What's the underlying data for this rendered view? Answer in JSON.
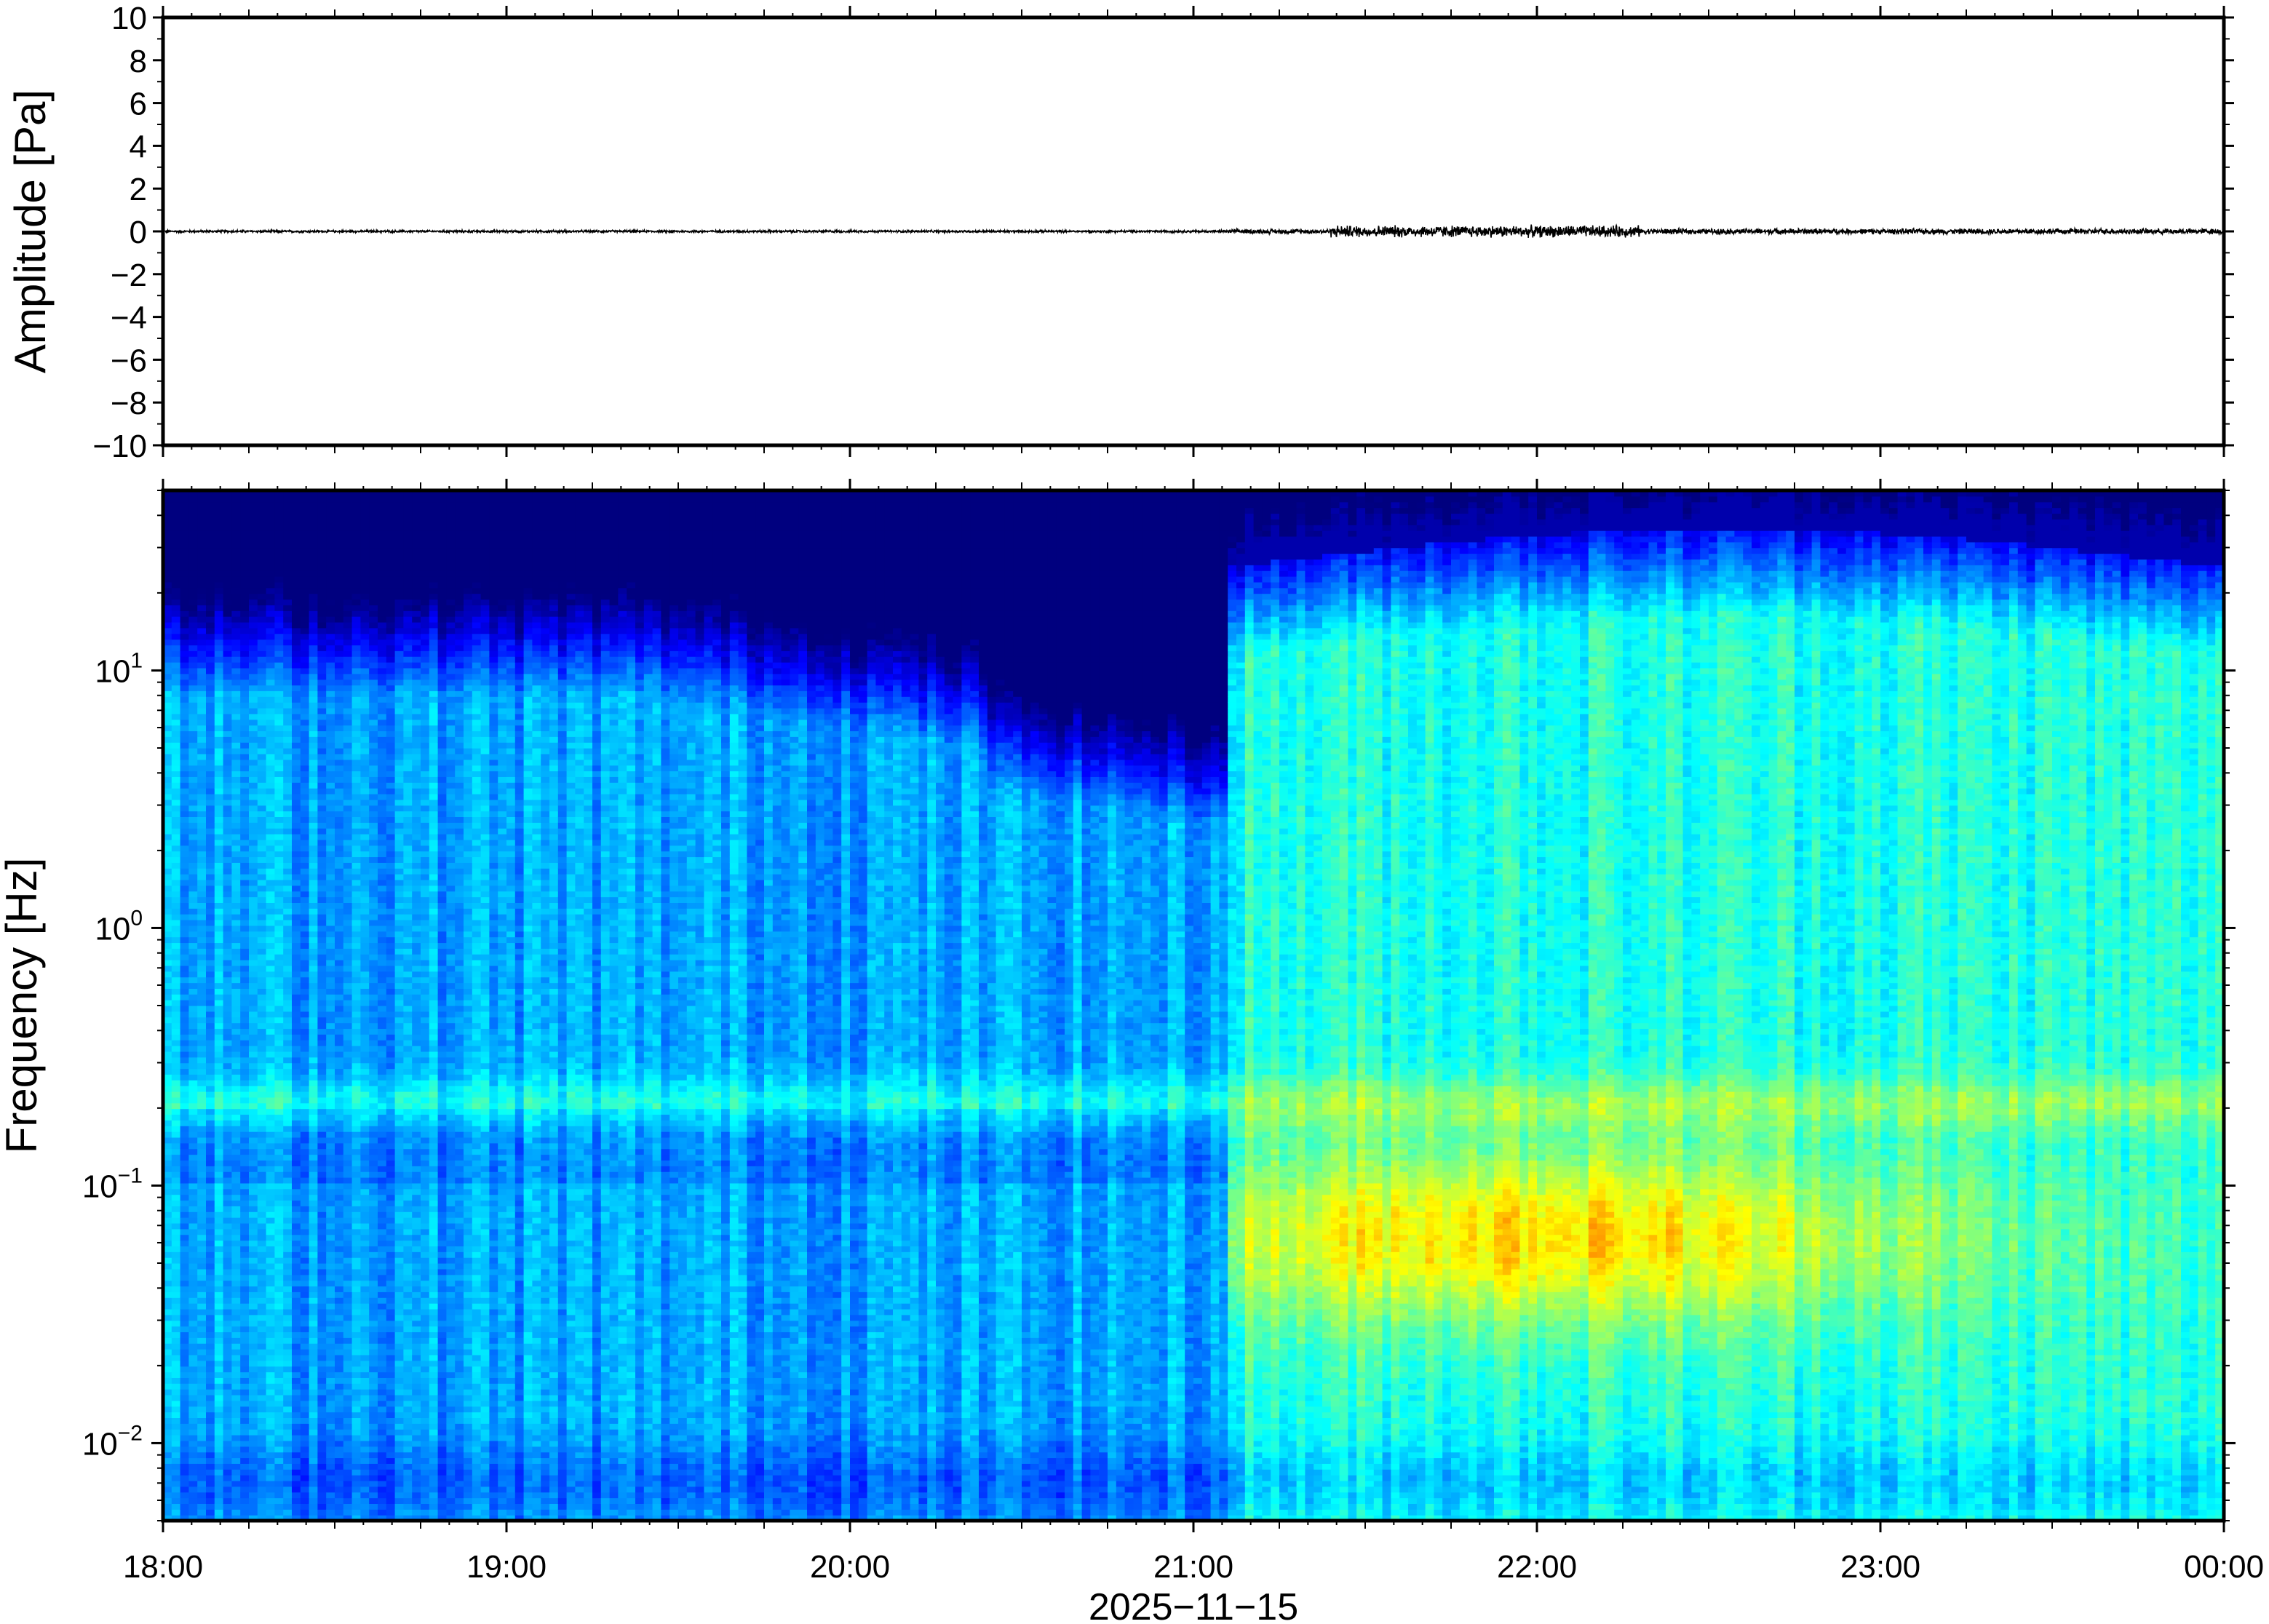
{
  "chart_data": [
    {
      "type": "line",
      "panel": "waveform",
      "ylabel": "Amplitude [Pa]",
      "ylim": [
        -10,
        10
      ],
      "yticks": [
        10,
        8,
        6,
        4,
        2,
        0,
        -2,
        -4,
        -6,
        -8,
        -10
      ],
      "ytick_labels": [
        "10",
        "8",
        "6",
        "4",
        "2",
        "0",
        "−2",
        "−4",
        "−6",
        "−8",
        "−10"
      ],
      "xlim_hours": [
        18,
        24
      ],
      "series": [
        {
          "segments": [
            {
              "t_start": 18.0,
              "t_end": 21.1,
              "envelope_pa": 0.05
            },
            {
              "t_start": 21.1,
              "t_end": 21.4,
              "envelope_pa": 0.1
            },
            {
              "t_start": 21.4,
              "t_end": 22.3,
              "envelope_pa": 0.25
            },
            {
              "t_start": 22.3,
              "t_end": 24.0,
              "envelope_pa": 0.12
            }
          ]
        }
      ],
      "grid": false
    },
    {
      "type": "heatmap",
      "panel": "spectrogram",
      "ylabel": "Frequency [Hz]",
      "yscale": "log",
      "ylim_hz": [
        0.005,
        50
      ],
      "ytick_labels": [
        {
          "value": 10,
          "base": "10",
          "exp": "1"
        },
        {
          "value": 1,
          "base": "10",
          "exp": "0"
        },
        {
          "value": 0.1,
          "base": "10",
          "exp": "−1"
        },
        {
          "value": 0.01,
          "base": "10",
          "exp": "−2"
        }
      ],
      "xlabel": "2025−11−15",
      "xticks_hours": [
        18,
        19,
        20,
        21,
        22,
        23,
        24
      ],
      "xtick_labels": [
        "18:00",
        "19:00",
        "20:00",
        "21:00",
        "22:00",
        "23:00",
        "00:00"
      ],
      "event_onset_hour": 21.1,
      "colormap": [
        "#00007f",
        "#0000ff",
        "#007fff",
        "#00ffff",
        "#7fff7f",
        "#ffff00",
        "#ff7f00",
        "#ff0000"
      ],
      "grid": false
    }
  ],
  "labels": {
    "amplitude": "Amplitude [Pa]",
    "frequency": "Frequency [Hz]",
    "date": "2025−11−15"
  }
}
